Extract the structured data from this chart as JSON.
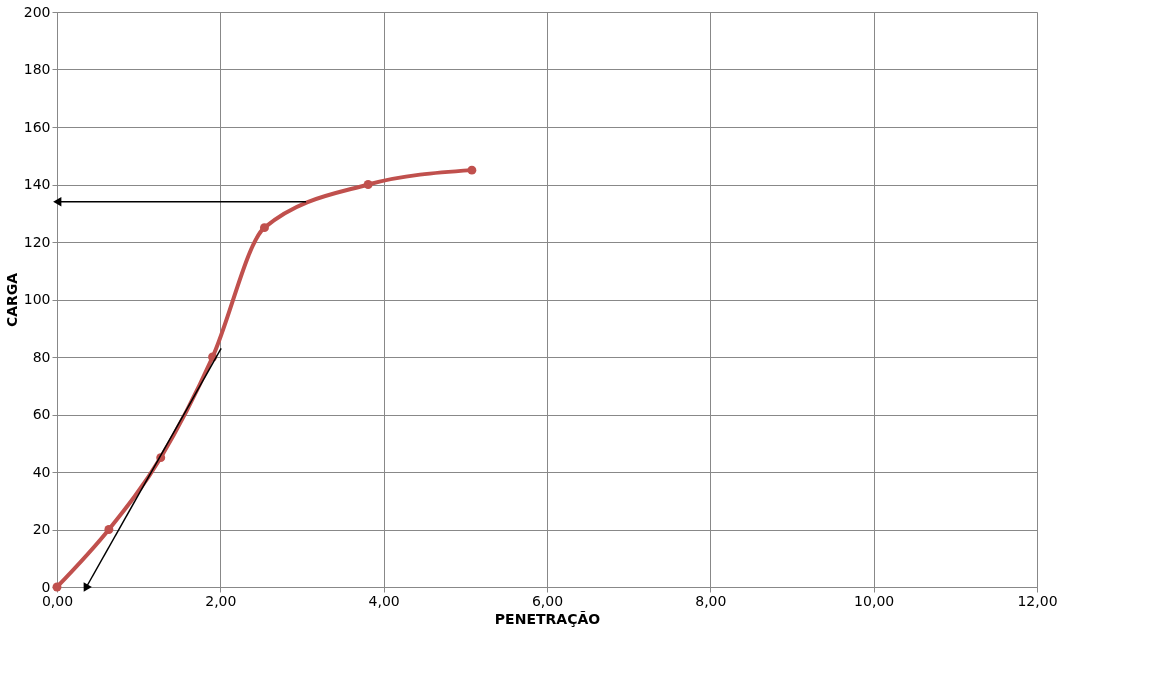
{
  "chart_data": {
    "type": "line",
    "xlabel": "PENETRAÇÃO",
    "ylabel": "CARGA",
    "series": [
      {
        "color": "#c0504d",
        "x": [
          0,
          0.635,
          1.27,
          1.905,
          2.54,
          3.81,
          5.08
        ],
        "values": [
          0,
          20,
          45,
          80,
          125,
          140,
          145
        ],
        "marker": "circle"
      },
      {
        "color": "#000000",
        "x": [
          3.05,
          0.02
        ],
        "values": [
          134,
          134
        ]
      },
      {
        "color": "#000000",
        "x": [
          2.01,
          0.36
        ],
        "values": [
          83,
          0
        ]
      }
    ],
    "xlim": [
      0,
      12
    ],
    "xticks": [
      {
        "value": 0,
        "label": "0,00"
      },
      {
        "value": 2,
        "label": "2,00"
      },
      {
        "value": 4,
        "label": "4,00"
      },
      {
        "value": 6,
        "label": "6,00"
      },
      {
        "value": 8,
        "label": "8,00"
      },
      {
        "value": 10,
        "label": "10,00"
      },
      {
        "value": 12,
        "label": "12,00"
      }
    ],
    "ylim": [
      0,
      200
    ],
    "yticks": [
      0,
      20,
      40,
      60,
      80,
      100,
      120,
      140,
      160,
      180,
      200
    ],
    "grid": true
  }
}
